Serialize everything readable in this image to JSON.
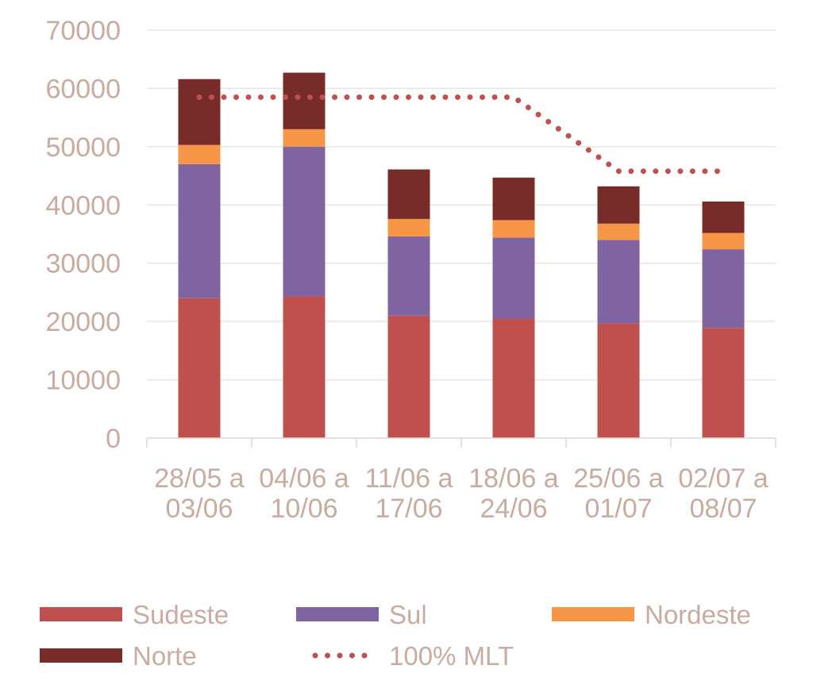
{
  "chart_data": {
    "type": "bar",
    "stacked": true,
    "title": "",
    "xlabel": "",
    "ylabel": "",
    "ylim": [
      0,
      70000
    ],
    "yticks": [
      0,
      10000,
      20000,
      30000,
      40000,
      50000,
      60000,
      70000
    ],
    "grid": true,
    "legend_position": "bottom",
    "categories": [
      [
        "28/05 a",
        "03/06"
      ],
      [
        "04/06 a",
        "10/06"
      ],
      [
        "11/06 a",
        "17/06"
      ],
      [
        "18/06 a",
        "24/06"
      ],
      [
        "25/06 a",
        "01/07"
      ],
      [
        "02/07 a",
        "08/07"
      ]
    ],
    "series": [
      {
        "name": "Sudeste",
        "color": "#c0504d",
        "values": [
          24000,
          24300,
          21000,
          20500,
          19700,
          18900
        ]
      },
      {
        "name": "Sul",
        "color": "#8064a2",
        "values": [
          23000,
          25700,
          13600,
          13900,
          14300,
          13500
        ]
      },
      {
        "name": "Nordeste",
        "color": "#f79646",
        "values": [
          3300,
          3000,
          3000,
          3000,
          2800,
          2800
        ]
      },
      {
        "name": "Norte",
        "color": "#772c2a",
        "values": [
          11300,
          9700,
          8500,
          7300,
          6400,
          5400
        ]
      }
    ],
    "line_series": {
      "name": "100% MLT",
      "color": "#c0504d",
      "style": "dotted",
      "values": [
        58500,
        58500,
        58500,
        58500,
        45800,
        45800
      ]
    },
    "legend": [
      "Sudeste",
      "Sul",
      "Nordeste",
      "Norte",
      "100% MLT"
    ]
  }
}
